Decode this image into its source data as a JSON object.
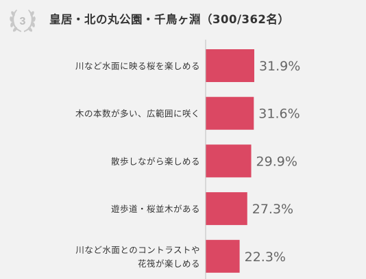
{
  "header": {
    "rank": "3",
    "title": "皇居・北の丸公園・千鳥ヶ淵（300/362名）"
  },
  "colors": {
    "bar": "#db4863",
    "axis": "#bfbfbf",
    "badge": "#c8c8c8"
  },
  "chart_data": {
    "type": "bar",
    "orientation": "horizontal",
    "title": "皇居・北の丸公園・千鳥ヶ淵（300/362名）",
    "categories": [
      [
        "川など水面に映る桜を楽しめる"
      ],
      [
        "木の本数が多い、広範囲に咲く"
      ],
      [
        "散歩しながら楽しめる"
      ],
      [
        "遊歩道・桜並木がある"
      ],
      [
        "川など水面とのコントラストや",
        "花筏が楽しめる"
      ]
    ],
    "values": [
      31.9,
      31.6,
      29.9,
      27.3,
      22.3
    ],
    "value_labels": [
      "31.9%",
      "31.6%",
      "29.9%",
      "27.3%",
      "22.3%"
    ],
    "unit": "%",
    "xlim": [
      0,
      100
    ]
  }
}
